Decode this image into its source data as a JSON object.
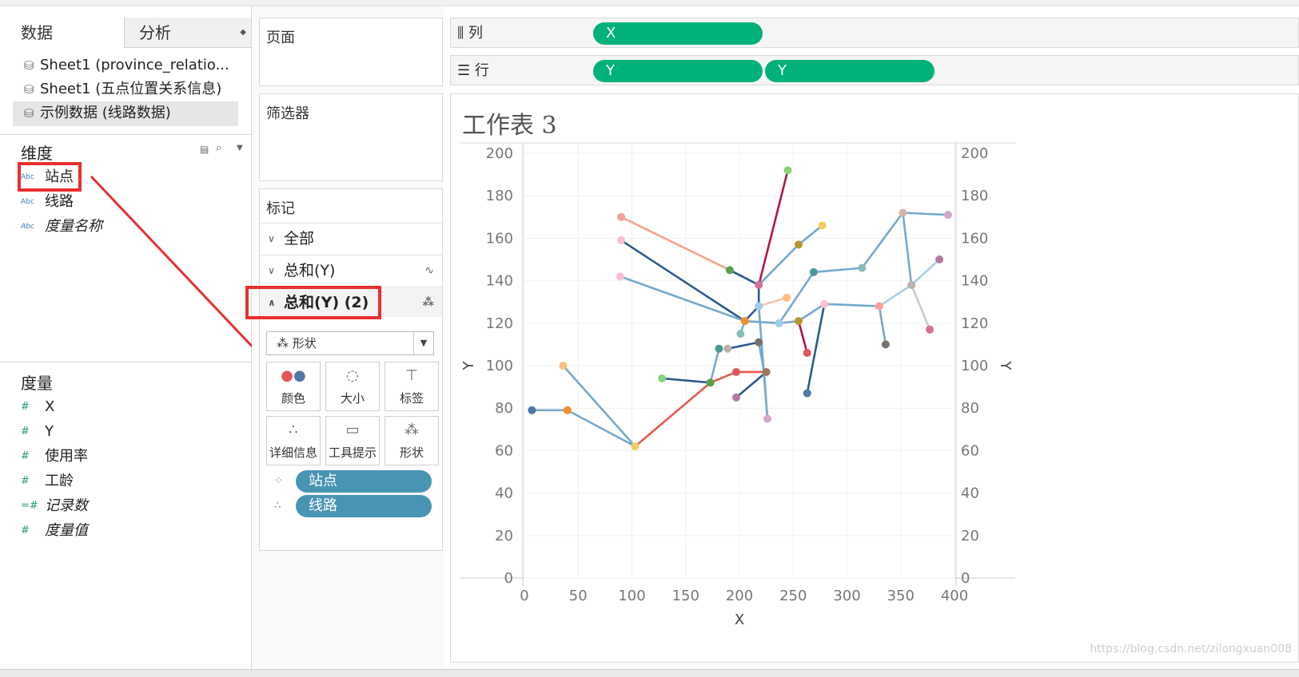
{
  "tabs": {
    "data": "数据",
    "analysis": "分析"
  },
  "sources": [
    {
      "label": "Sheet1 (province_relatio..."
    },
    {
      "label": "Sheet1 (五点位置关系信息)"
    },
    {
      "label": "示例数据 (线路数据)"
    }
  ],
  "dimensions": {
    "header": "维度",
    "items": [
      "站点",
      "线路",
      "度量名称"
    ]
  },
  "measures": {
    "header": "度量",
    "items": [
      "X",
      "Y",
      "使用率",
      "工龄",
      "记录数",
      "度量值"
    ]
  },
  "cards": {
    "pages": "页面",
    "filters": "筛选器",
    "marks": "标记"
  },
  "marks": {
    "rows": [
      "全部",
      "总和(Y)",
      "总和(Y) (2)"
    ],
    "mark_type": "形状",
    "buttons": [
      "颜色",
      "大小",
      "标签",
      "详细信息",
      "工具提示",
      "形状"
    ],
    "pills": [
      "站点",
      "线路"
    ]
  },
  "shelves": {
    "columns_label": "列",
    "rows_label": "行",
    "columns_pills": [
      "X"
    ],
    "rows_pills": [
      "Y",
      "Y"
    ]
  },
  "sheet": {
    "title": "工作表 3"
  },
  "watermark": "https://blog.csdn.net/zilongxuan008",
  "chart_data": {
    "type": "scatter",
    "xlabel": "X",
    "ylabel": "Y",
    "xlim": [
      0,
      400
    ],
    "ylim": [
      0,
      200
    ],
    "y2lim": [
      0,
      200
    ],
    "x_ticks": [
      0,
      50,
      100,
      150,
      200,
      250,
      300,
      350,
      400
    ],
    "y_ticks": [
      0,
      20,
      40,
      60,
      80,
      100,
      120,
      140,
      160,
      180,
      200
    ],
    "grid": true,
    "segments": [
      {
        "color": "#76a9cc",
        "points": [
          [
            7,
            79
          ],
          [
            40,
            79
          ],
          [
            103,
            62
          ]
        ]
      },
      {
        "color": "#76a9cc",
        "points": [
          [
            36,
            100
          ],
          [
            103,
            62
          ]
        ]
      },
      {
        "color": "#e55a4e",
        "points": [
          [
            103,
            62
          ],
          [
            173,
            92
          ],
          [
            197,
            97
          ],
          [
            225,
            97
          ]
        ]
      },
      {
        "color": "#2d5a8c",
        "points": [
          [
            128,
            94
          ],
          [
            173,
            92
          ]
        ]
      },
      {
        "color": "#76a9cc",
        "points": [
          [
            173,
            92
          ],
          [
            181,
            108
          ]
        ]
      },
      {
        "color": "#2d5a8c",
        "points": [
          [
            90,
            159
          ],
          [
            205,
            121
          ]
        ]
      },
      {
        "color": "#76a9cc",
        "points": [
          [
            89,
            142
          ],
          [
            205,
            121
          ]
        ]
      },
      {
        "color": "#f4a58a",
        "points": [
          [
            90,
            170
          ],
          [
            191,
            145
          ]
        ]
      },
      {
        "color": "#2d5a8c",
        "points": [
          [
            191,
            145
          ],
          [
            218,
            138
          ],
          [
            218,
            128
          ],
          [
            205,
            121
          ]
        ]
      },
      {
        "color": "#b0174a",
        "points": [
          [
            245,
            192
          ],
          [
            218,
            138
          ]
        ]
      },
      {
        "color": "#b0174a",
        "points": [
          [
            255,
            121
          ],
          [
            263,
            106
          ]
        ]
      },
      {
        "color": "#76a9cc",
        "points": [
          [
            218,
            138
          ],
          [
            255,
            157
          ],
          [
            277,
            166
          ]
        ]
      },
      {
        "color": "#76a9cc",
        "points": [
          [
            205,
            121
          ],
          [
            201,
            115
          ]
        ]
      },
      {
        "color": "#2d5a8c",
        "points": [
          [
            189,
            108
          ],
          [
            218,
            111
          ]
        ]
      },
      {
        "color": "#76a9cc",
        "points": [
          [
            218,
            111
          ],
          [
            223,
            97
          ]
        ]
      },
      {
        "color": "#76a9cc",
        "points": [
          [
            223,
            97
          ],
          [
            226,
            75
          ]
        ]
      },
      {
        "color": "#2d5a8c",
        "points": [
          [
            197,
            85
          ],
          [
            225,
            97
          ]
        ]
      },
      {
        "color": "#f7c5b3",
        "points": [
          [
            218,
            128
          ],
          [
            244,
            132
          ]
        ]
      },
      {
        "color": "#76a9cc",
        "points": [
          [
            205,
            121
          ],
          [
            237,
            120
          ],
          [
            255,
            121
          ]
        ]
      },
      {
        "color": "#76a9cc",
        "points": [
          [
            237,
            120
          ],
          [
            269,
            144
          ],
          [
            314,
            146
          ],
          [
            352,
            172
          ],
          [
            394,
            171
          ]
        ]
      },
      {
        "color": "#2d5a8c",
        "points": [
          [
            263,
            87
          ],
          [
            279,
            129
          ]
        ]
      },
      {
        "color": "#76a9cc",
        "points": [
          [
            255,
            121
          ],
          [
            279,
            129
          ],
          [
            330,
            128
          ],
          [
            336,
            110
          ]
        ]
      },
      {
        "color": "#a8cfe6",
        "points": [
          [
            330,
            128
          ],
          [
            360,
            138
          ],
          [
            386,
            150
          ]
        ]
      },
      {
        "color": "#cccccc",
        "points": [
          [
            360,
            138
          ],
          [
            377,
            117
          ]
        ]
      },
      {
        "color": "#76a9cc",
        "points": [
          [
            360,
            138
          ],
          [
            352,
            172
          ]
        ]
      },
      {
        "color": "#76a9cc",
        "points": [
          [
            218,
            128
          ],
          [
            226,
            75
          ]
        ]
      }
    ],
    "points": [
      {
        "x": 7,
        "y": 79,
        "color": "#4e79a7"
      },
      {
        "x": 40,
        "y": 79,
        "color": "#f28e2b"
      },
      {
        "x": 36,
        "y": 100,
        "color": "#ffbe7d"
      },
      {
        "x": 103,
        "y": 62,
        "color": "#f1ce63"
      },
      {
        "x": 128,
        "y": 94,
        "color": "#8cd17d"
      },
      {
        "x": 173,
        "y": 92,
        "color": "#59a14f"
      },
      {
        "x": 181,
        "y": 108,
        "color": "#499894"
      },
      {
        "x": 197,
        "y": 97,
        "color": "#e15759"
      },
      {
        "x": 197,
        "y": 85,
        "color": "#b07aa1"
      },
      {
        "x": 225,
        "y": 97,
        "color": "#9d7660"
      },
      {
        "x": 226,
        "y": 75,
        "color": "#d4a6c8"
      },
      {
        "x": 189,
        "y": 108,
        "color": "#bab0ac"
      },
      {
        "x": 218,
        "y": 111,
        "color": "#79706e"
      },
      {
        "x": 201,
        "y": 115,
        "color": "#86bcb6"
      },
      {
        "x": 205,
        "y": 121,
        "color": "#f28e2b"
      },
      {
        "x": 218,
        "y": 128,
        "color": "#a0cbe8"
      },
      {
        "x": 237,
        "y": 120,
        "color": "#a0cbe8"
      },
      {
        "x": 255,
        "y": 121,
        "color": "#b6992d"
      },
      {
        "x": 244,
        "y": 132,
        "color": "#ffbe7d"
      },
      {
        "x": 218,
        "y": 138,
        "color": "#d37295"
      },
      {
        "x": 191,
        "y": 145,
        "color": "#59a14f"
      },
      {
        "x": 90,
        "y": 170,
        "color": "#ff9d9a"
      },
      {
        "x": 90,
        "y": 159,
        "color": "#fabfd2"
      },
      {
        "x": 89,
        "y": 142,
        "color": "#fabfd2"
      },
      {
        "x": 245,
        "y": 192,
        "color": "#8cd17d"
      },
      {
        "x": 255,
        "y": 157,
        "color": "#b6992d"
      },
      {
        "x": 277,
        "y": 166,
        "color": "#f1ce63"
      },
      {
        "x": 263,
        "y": 106,
        "color": "#e15759"
      },
      {
        "x": 263,
        "y": 87,
        "color": "#4e79a7"
      },
      {
        "x": 269,
        "y": 144,
        "color": "#499894"
      },
      {
        "x": 279,
        "y": 129,
        "color": "#fabfd2"
      },
      {
        "x": 314,
        "y": 146,
        "color": "#86bcb6"
      },
      {
        "x": 330,
        "y": 128,
        "color": "#ff9d9a"
      },
      {
        "x": 336,
        "y": 110,
        "color": "#79706e"
      },
      {
        "x": 352,
        "y": 172,
        "color": "#d7b5a6"
      },
      {
        "x": 360,
        "y": 138,
        "color": "#bab0ac"
      },
      {
        "x": 394,
        "y": 171,
        "color": "#d4a6c8"
      },
      {
        "x": 386,
        "y": 150,
        "color": "#b07aa1"
      },
      {
        "x": 377,
        "y": 117,
        "color": "#d37295"
      }
    ]
  }
}
